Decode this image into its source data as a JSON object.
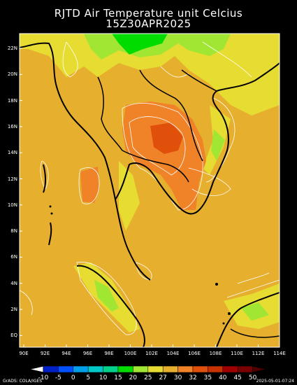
{
  "title_line1": "RJTD Air Temperature unit Celcius",
  "title_line2": "15Z30APR2025",
  "lat_labels": [
    "22N",
    "20N",
    "18N",
    "16N",
    "14N",
    "12N",
    "10N",
    "8N",
    "6N",
    "4N",
    "2N",
    "EQ"
  ],
  "lon_labels": [
    "90E",
    "92E",
    "94E",
    "96E",
    "98E",
    "100E",
    "102E",
    "104E",
    "106E",
    "108E",
    "110E",
    "112E",
    "114E"
  ],
  "colorbar": {
    "labels": [
      "-10",
      "-5",
      "0",
      "5",
      "10",
      "15",
      "20",
      "25",
      "27",
      "30",
      "32",
      "35",
      "40",
      "45",
      "50"
    ],
    "colors": [
      "#0020c8",
      "#0050ff",
      "#00a0e8",
      "#00c8c8",
      "#00d28c",
      "#00dc00",
      "#a0e632",
      "#e6dc32",
      "#e6af2d",
      "#f08228",
      "#e0500a",
      "#c83200",
      "#a00000",
      "#780000"
    ]
  },
  "footer_left": "GrADS: COLA/IGES",
  "footer_right": "2025-05-01-07:24",
  "colors": {
    "land_base": "#e6af2d",
    "warm": "#f08228",
    "hot": "#e0500a",
    "cool": "#e6dc32",
    "mild": "#a0e632",
    "cold": "#00dc00"
  }
}
